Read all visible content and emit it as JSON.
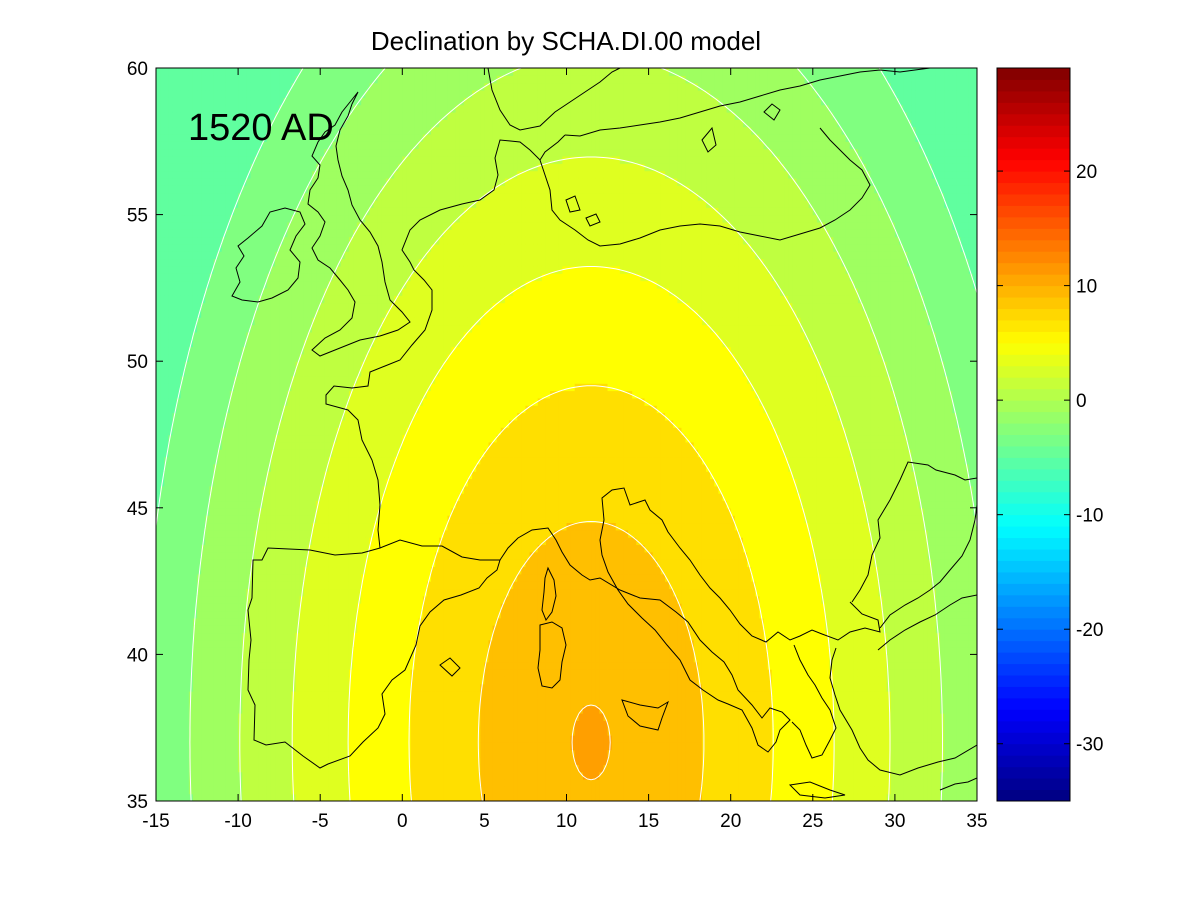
{
  "chart_data": [
    {
      "type": "heatmap",
      "title": "Declination by SCHA.DI.00 model",
      "annotation": "1520 AD",
      "xlabel": "",
      "ylabel": "",
      "xlim": [
        -15,
        35
      ],
      "ylim": [
        35,
        60
      ],
      "x_ticks": [
        -15,
        -10,
        -5,
        0,
        5,
        10,
        15,
        20,
        25,
        30,
        35
      ],
      "y_ticks": [
        35,
        40,
        45,
        50,
        55,
        60
      ],
      "contour_levels": [
        -4,
        -2,
        0,
        2,
        4,
        6,
        8,
        10
      ],
      "field": {
        "description_of_shape": "filled contours of declination (degrees); minimum in the north-west, maximum in the central Mediterranean",
        "max_center": [
          11.5,
          37
        ],
        "value_range": [
          -4,
          10
        ]
      },
      "colorbar": {
        "colormap": "jet",
        "range": [
          -35,
          29
        ],
        "ticks": [
          -30,
          -20,
          -10,
          0,
          10,
          20
        ]
      },
      "grid": false,
      "legend": "none"
    }
  ]
}
